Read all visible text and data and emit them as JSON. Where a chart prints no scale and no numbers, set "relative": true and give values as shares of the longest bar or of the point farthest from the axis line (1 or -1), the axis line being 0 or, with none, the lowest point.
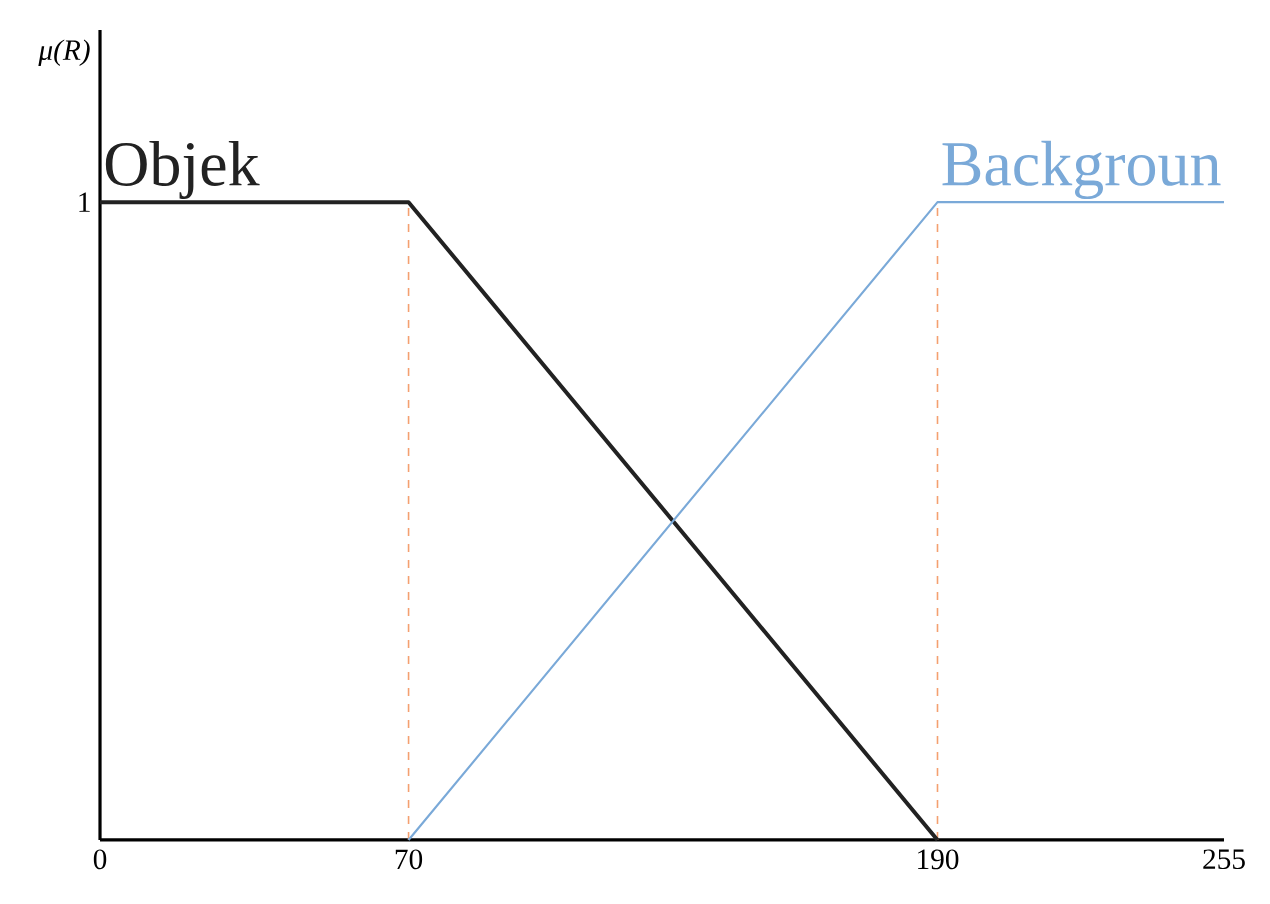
{
  "chart_data": {
    "type": "line",
    "ylabel": "μ(R)",
    "relative": true,
    "annotations": [
      "1"
    ],
    "xlim": [
      0,
      255
    ],
    "xticks": [
      0,
      70,
      190,
      255
    ],
    "grid": false,
    "legend": false,
    "marker": "none",
    "line_style": "solid",
    "series": [
      {
        "name": "Objek",
        "color": "#222222",
        "x": [
          0,
          70,
          190
        ],
        "values": [
          1,
          1,
          0
        ]
      },
      {
        "name": "Backgroun",
        "color": "#7aa9d8",
        "x": [
          70,
          190,
          255
        ],
        "values": [
          0,
          1,
          1
        ]
      }
    ],
    "ref_lines": [
      {
        "axis": "x",
        "value": 70,
        "color": "#f4a070",
        "line_style": "dashed"
      },
      {
        "axis": "x",
        "value": 190,
        "color": "#f4a070",
        "line_style": "dashed"
      }
    ]
  }
}
